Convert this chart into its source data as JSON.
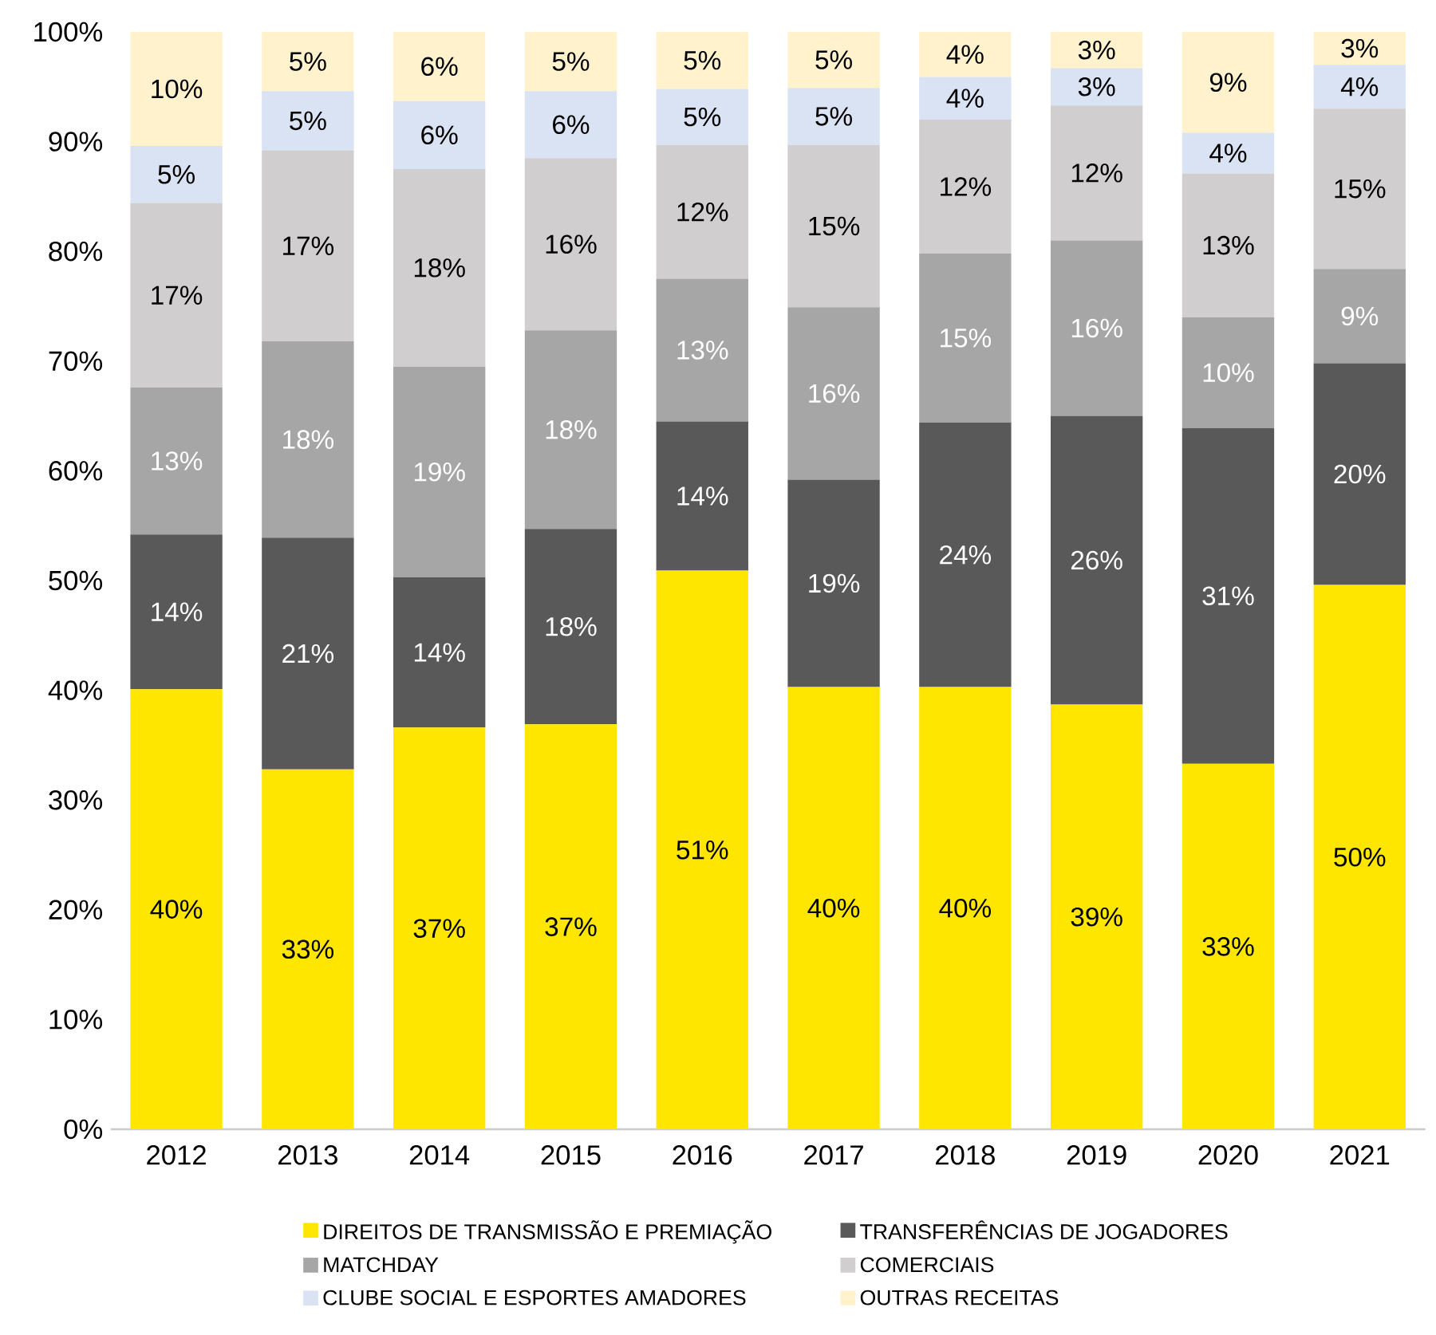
{
  "chart_data": {
    "type": "bar",
    "stacked": true,
    "categories": [
      "2012",
      "2013",
      "2014",
      "2015",
      "2016",
      "2017",
      "2018",
      "2019",
      "2020",
      "2021"
    ],
    "series": [
      {
        "name": "DIREITOS DE TRANSMISSÃO E PREMIAÇÃO",
        "color": "#ffe600",
        "values": [
          40.1,
          32.8,
          36.6,
          36.9,
          50.9,
          40.3,
          40.3,
          38.7,
          33.3,
          49.6
        ],
        "value_labels": [
          "40%",
          "33%",
          "37%",
          "37%",
          "51%",
          "40%",
          "40%",
          "39%",
          "33%",
          "50%"
        ]
      },
      {
        "name": "TRANSFERÊNCIAS DE JOGADORES",
        "color": "#595959",
        "values": [
          14.1,
          21.1,
          13.7,
          17.8,
          13.6,
          18.9,
          24.1,
          26.3,
          30.6,
          20.2
        ],
        "value_labels": [
          "14%",
          "21%",
          "14%",
          "18%",
          "14%",
          "19%",
          "24%",
          "26%",
          "31%",
          "20%"
        ]
      },
      {
        "name": "MATCHDAY",
        "color": "#a6a6a6",
        "values": [
          13.4,
          17.9,
          19.2,
          18.1,
          13.0,
          15.7,
          15.4,
          16.0,
          10.1,
          8.6
        ],
        "value_labels": [
          "13%",
          "18%",
          "19%",
          "18%",
          "13%",
          "16%",
          "15%",
          "16%",
          "10%",
          "9%"
        ]
      },
      {
        "name": "COMERCIAIS",
        "color": "#d0cece",
        "values": [
          16.8,
          17.4,
          18.0,
          15.7,
          12.2,
          14.8,
          12.2,
          12.3,
          13.1,
          14.6
        ],
        "value_labels": [
          "17%",
          "17%",
          "18%",
          "16%",
          "12%",
          "15%",
          "12%",
          "12%",
          "13%",
          "15%"
        ]
      },
      {
        "name": "CLUBE SOCIAL E ESPORTES AMADORES",
        "color": "#dae3f3",
        "values": [
          5.2,
          5.4,
          6.2,
          6.1,
          5.1,
          5.2,
          3.9,
          3.4,
          3.7,
          4.0
        ],
        "value_labels": [
          "5%",
          "5%",
          "6%",
          "6%",
          "5%",
          "5%",
          "4%",
          "3%",
          "4%",
          "4%"
        ]
      },
      {
        "name": "OUTRAS RECEITAS",
        "color": "#fff2cc",
        "values": [
          10.4,
          5.4,
          6.3,
          5.4,
          5.2,
          5.1,
          4.1,
          3.3,
          9.2,
          3.0
        ],
        "value_labels": [
          "10%",
          "5%",
          "6%",
          "5%",
          "5%",
          "5%",
          "4%",
          "3%",
          "9%",
          "3%"
        ]
      }
    ],
    "ylim": [
      0,
      100
    ],
    "yticks": [
      {
        "value": 0,
        "label": "0%"
      },
      {
        "value": 10,
        "label": "10%"
      },
      {
        "value": 20,
        "label": "20%"
      },
      {
        "value": 30,
        "label": "30%"
      },
      {
        "value": 40,
        "label": "40%"
      },
      {
        "value": 50,
        "label": "50%"
      },
      {
        "value": 60,
        "label": "60%"
      },
      {
        "value": 70,
        "label": "70%"
      },
      {
        "value": 80,
        "label": "80%"
      },
      {
        "value": 90,
        "label": "90%"
      },
      {
        "value": 100,
        "label": "100%"
      }
    ],
    "grid": false,
    "legend": "bottom"
  }
}
